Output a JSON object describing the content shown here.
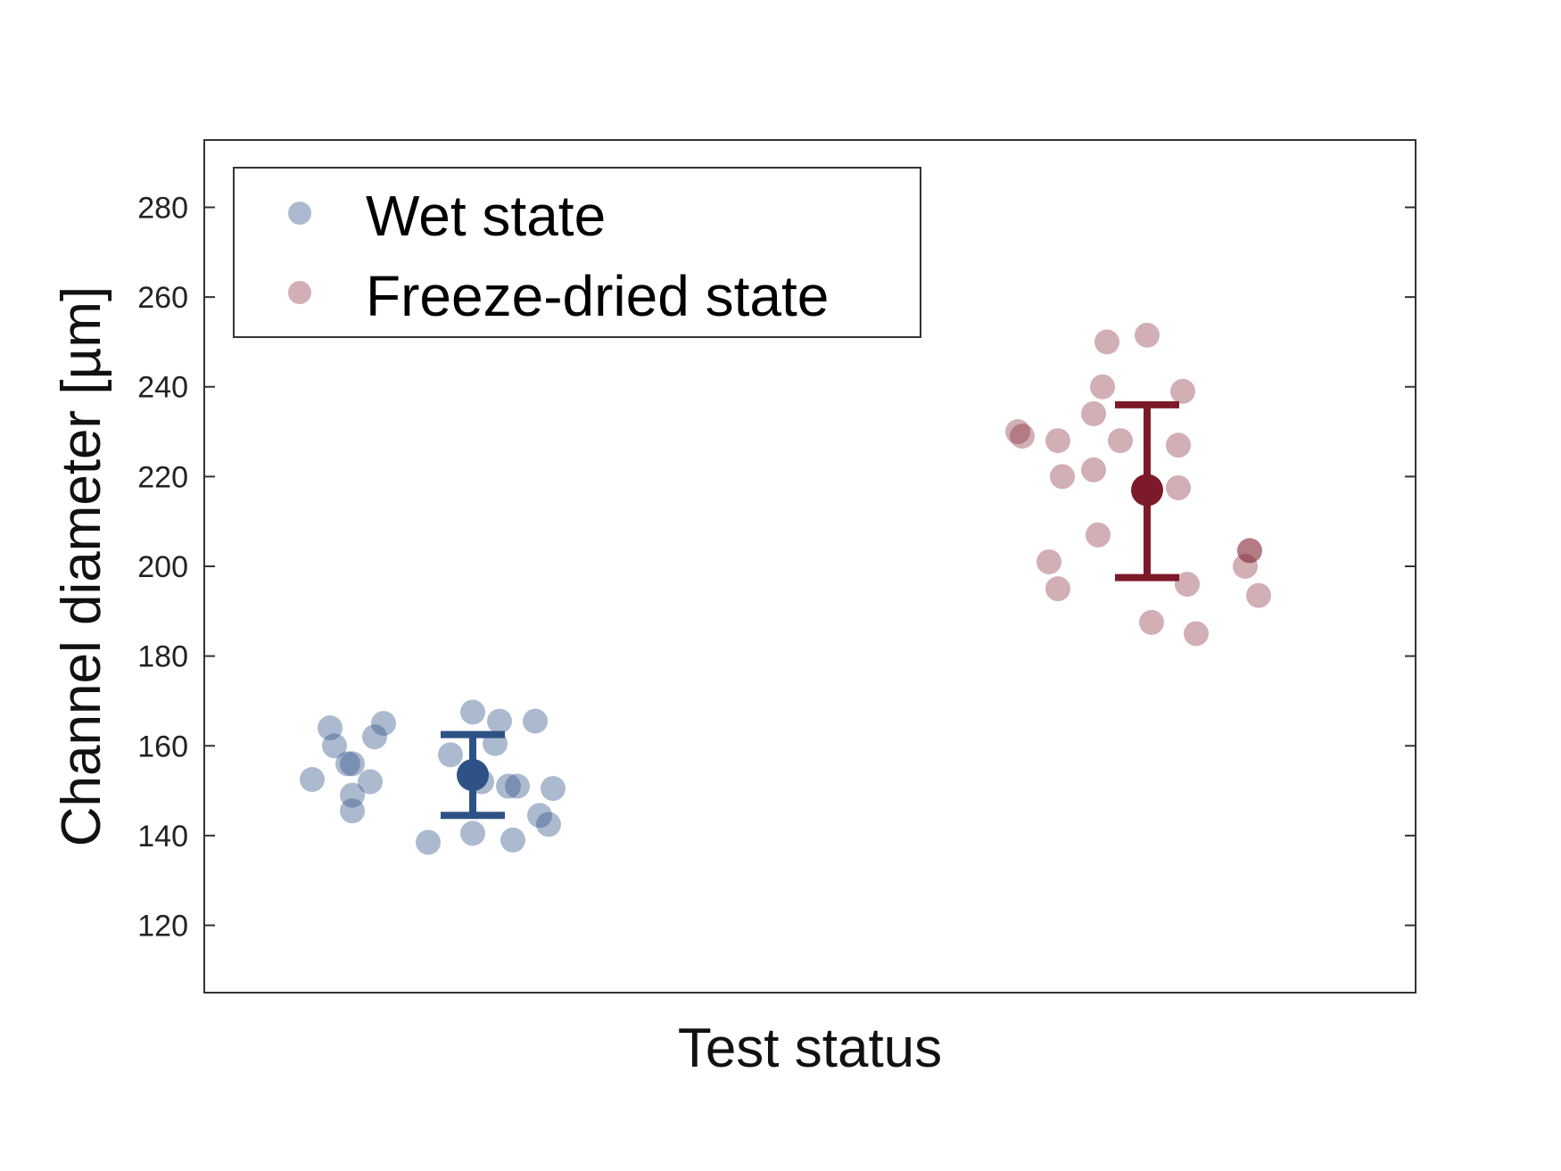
{
  "chart_data": {
    "type": "scatter",
    "title": "",
    "xlabel": "Test status",
    "ylabel": "Channel diameter [µm]",
    "ylim": [
      105,
      295
    ],
    "yticks": [
      120,
      140,
      160,
      180,
      200,
      220,
      240,
      260,
      280
    ],
    "grid": false,
    "legend_position": "top-left",
    "series": [
      {
        "name": "Wet state",
        "color": "#2F5286",
        "mean": 153.5,
        "error_low": 144.5,
        "error_high": 162.5,
        "points": [
          [
            -0.36,
            152.5
          ],
          [
            -0.32,
            164
          ],
          [
            -0.31,
            160
          ],
          [
            -0.28,
            156
          ],
          [
            -0.27,
            156
          ],
          [
            -0.27,
            149
          ],
          [
            -0.27,
            145.5
          ],
          [
            -0.23,
            152
          ],
          [
            -0.22,
            162
          ],
          [
            -0.2,
            165
          ],
          [
            -0.1,
            138.5
          ],
          [
            -0.05,
            158
          ],
          [
            0.0,
            167.5
          ],
          [
            0.0,
            140.5
          ],
          [
            0.02,
            152
          ],
          [
            0.05,
            160.5
          ],
          [
            0.06,
            165.5
          ],
          [
            0.08,
            151
          ],
          [
            0.09,
            139
          ],
          [
            0.1,
            151
          ],
          [
            0.14,
            165.5
          ],
          [
            0.15,
            144.5
          ],
          [
            0.17,
            142.5
          ],
          [
            0.18,
            150.5
          ]
        ]
      },
      {
        "name": "Freeze-dried state",
        "color": "#7D1A2A",
        "mean": 217,
        "error_low": 197.5,
        "error_high": 236,
        "points": [
          [
            -0.29,
            230
          ],
          [
            -0.28,
            229
          ],
          [
            -0.22,
            201
          ],
          [
            -0.2,
            228
          ],
          [
            -0.2,
            195
          ],
          [
            -0.19,
            220
          ],
          [
            -0.12,
            234
          ],
          [
            -0.12,
            221.5
          ],
          [
            -0.11,
            207
          ],
          [
            -0.1,
            240
          ],
          [
            -0.09,
            250
          ],
          [
            -0.06,
            228
          ],
          [
            0.0,
            251.5
          ],
          [
            0.01,
            187.5
          ],
          [
            0.07,
            227
          ],
          [
            0.07,
            217.5
          ],
          [
            0.08,
            239
          ],
          [
            0.09,
            196
          ],
          [
            0.11,
            185
          ],
          [
            0.22,
            200
          ],
          [
            0.23,
            203.5
          ],
          [
            0.23,
            203.5
          ],
          [
            0.25,
            193.5
          ]
        ]
      }
    ]
  }
}
